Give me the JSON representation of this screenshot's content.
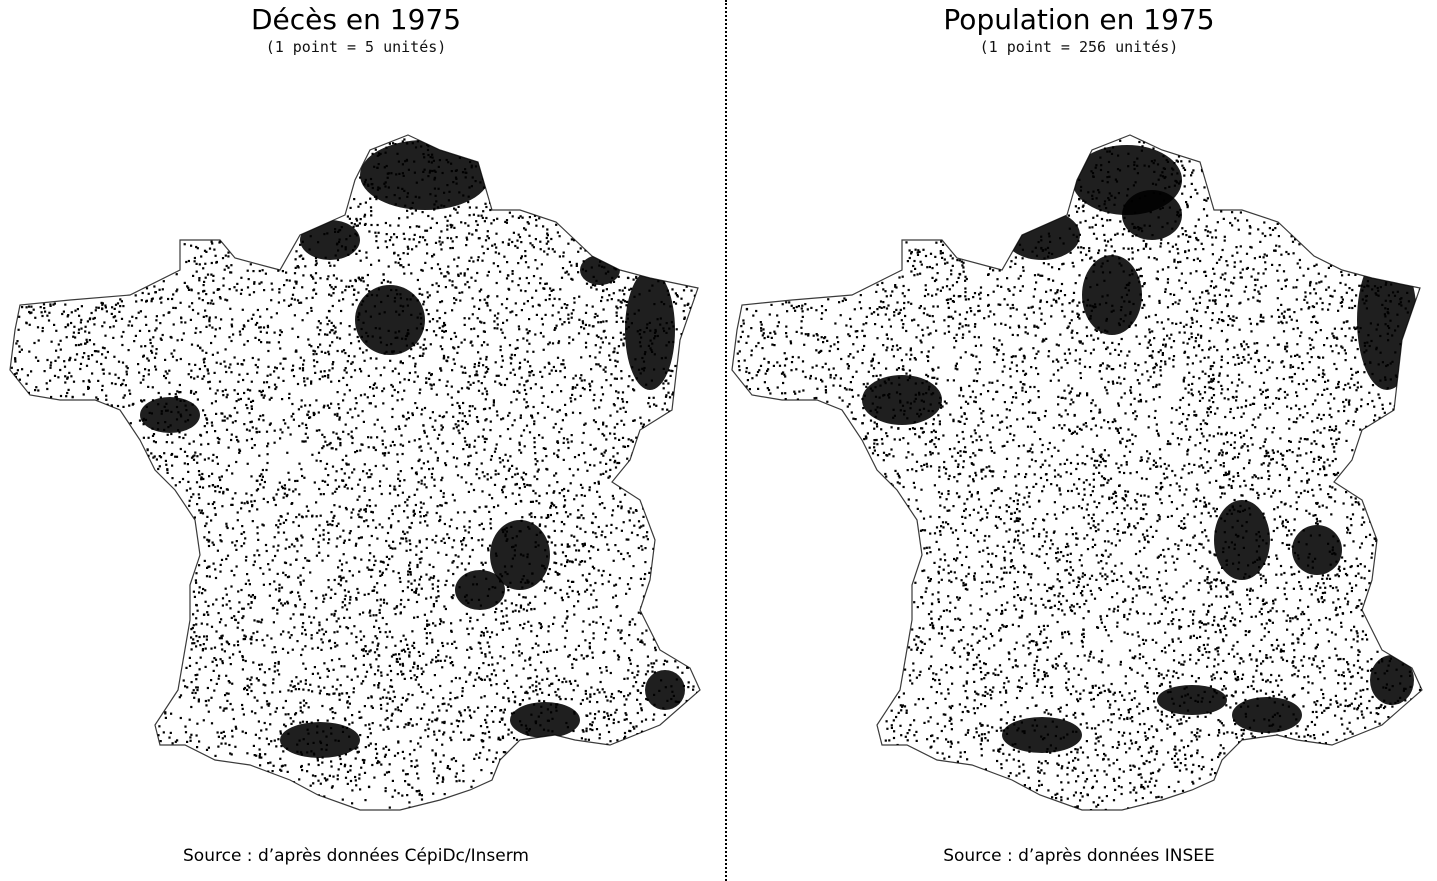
{
  "panels": [
    {
      "title": "Décès en 1975",
      "subtitle": "(1 point = 5 unités)",
      "source": "Source : d’après données CépiDc/Inserm"
    },
    {
      "title": "Population en 1975",
      "subtitle": "(1 point = 256 unités)",
      "source": "Source : d’après données INSEE"
    }
  ],
  "colors": {
    "dots": "#000000",
    "background": "#ffffff",
    "outline": "#3a3a3a"
  }
}
